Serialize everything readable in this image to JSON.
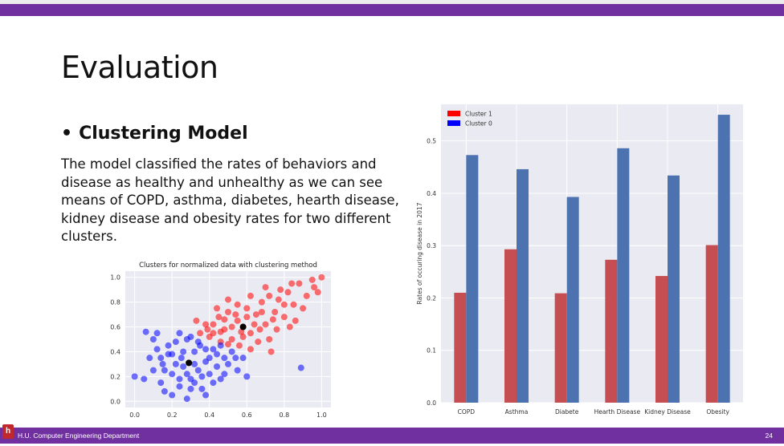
{
  "slide": {
    "title": "Evaluation",
    "bullet_marker": "•",
    "bullet": "Clustering Model",
    "body": "The model classified the rates of behaviors and disease as healthy and unhealthy as we can see means of COPD, asthma, diabetes, hearth disease, kidney disease and obesity rates for two different clusters.",
    "footer_text": "H.U. Computer Engineering Department",
    "page_number": "24",
    "logo_glyph": "h",
    "accent_color": "#7030a0"
  },
  "chart_data": [
    {
      "type": "scatter",
      "title": "Clusters for normalized data with clustering method",
      "xlim": [
        -0.05,
        1.05
      ],
      "ylim": [
        -0.05,
        1.05
      ],
      "xticks": [
        "0.0",
        "0.2",
        "0.4",
        "0.6",
        "0.8",
        "1.0"
      ],
      "yticks": [
        "0.0",
        "0.2",
        "0.4",
        "0.6",
        "0.8",
        "1.0"
      ],
      "grid": true,
      "series": [
        {
          "color": "#ff0000",
          "points": [
            [
              0.38,
              0.62
            ],
            [
              0.42,
              0.55
            ],
            [
              0.45,
              0.68
            ],
            [
              0.48,
              0.58
            ],
            [
              0.5,
              0.72
            ],
            [
              0.52,
              0.5
            ],
            [
              0.55,
              0.65
            ],
            [
              0.58,
              0.6
            ],
            [
              0.6,
              0.75
            ],
            [
              0.62,
              0.55
            ],
            [
              0.65,
              0.7
            ],
            [
              0.68,
              0.8
            ],
            [
              0.7,
              0.62
            ],
            [
              0.72,
              0.85
            ],
            [
              0.75,
              0.72
            ],
            [
              0.78,
              0.9
            ],
            [
              0.8,
              0.68
            ],
            [
              0.82,
              0.88
            ],
            [
              0.85,
              0.78
            ],
            [
              0.88,
              0.95
            ],
            [
              0.92,
              0.85
            ],
            [
              0.95,
              0.98
            ],
            [
              1.0,
              1.0
            ],
            [
              0.98,
              0.88
            ],
            [
              0.9,
              0.75
            ],
            [
              0.86,
              0.65
            ],
            [
              0.76,
              0.58
            ],
            [
              0.66,
              0.48
            ],
            [
              0.56,
              0.45
            ],
            [
              0.46,
              0.48
            ],
            [
              0.4,
              0.52
            ],
            [
              0.35,
              0.55
            ],
            [
              0.33,
              0.65
            ],
            [
              0.44,
              0.75
            ],
            [
              0.5,
              0.82
            ],
            [
              0.55,
              0.78
            ],
            [
              0.62,
              0.85
            ],
            [
              0.7,
              0.92
            ],
            [
              0.58,
              0.52
            ],
            [
              0.64,
              0.62
            ],
            [
              0.52,
              0.6
            ],
            [
              0.48,
              0.66
            ],
            [
              0.6,
              0.68
            ],
            [
              0.74,
              0.66
            ],
            [
              0.8,
              0.78
            ],
            [
              0.84,
              0.95
            ],
            [
              0.68,
              0.72
            ],
            [
              0.54,
              0.7
            ],
            [
              0.42,
              0.62
            ],
            [
              0.46,
              0.56
            ],
            [
              0.62,
              0.42
            ],
            [
              0.72,
              0.5
            ],
            [
              0.67,
              0.58
            ],
            [
              0.57,
              0.56
            ],
            [
              0.39,
              0.58
            ],
            [
              0.77,
              0.82
            ],
            [
              0.96,
              0.92
            ],
            [
              0.83,
              0.6
            ],
            [
              0.73,
              0.4
            ],
            [
              0.5,
              0.46
            ]
          ]
        },
        {
          "color": "#0000ff",
          "points": [
            [
              0.0,
              0.2
            ],
            [
              0.05,
              0.18
            ],
            [
              0.08,
              0.35
            ],
            [
              0.1,
              0.25
            ],
            [
              0.12,
              0.42
            ],
            [
              0.14,
              0.15
            ],
            [
              0.15,
              0.3
            ],
            [
              0.18,
              0.38
            ],
            [
              0.2,
              0.22
            ],
            [
              0.22,
              0.48
            ],
            [
              0.24,
              0.12
            ],
            [
              0.25,
              0.35
            ],
            [
              0.26,
              0.28
            ],
            [
              0.28,
              0.5
            ],
            [
              0.3,
              0.18
            ],
            [
              0.32,
              0.4
            ],
            [
              0.34,
              0.25
            ],
            [
              0.35,
              0.45
            ],
            [
              0.36,
              0.1
            ],
            [
              0.38,
              0.32
            ],
            [
              0.4,
              0.22
            ],
            [
              0.42,
              0.42
            ],
            [
              0.44,
              0.28
            ],
            [
              0.46,
              0.18
            ],
            [
              0.48,
              0.35
            ],
            [
              0.5,
              0.3
            ],
            [
              0.52,
              0.4
            ],
            [
              0.55,
              0.25
            ],
            [
              0.58,
              0.35
            ],
            [
              0.6,
              0.2
            ],
            [
              0.89,
              0.27
            ],
            [
              0.2,
              0.05
            ],
            [
              0.28,
              0.02
            ],
            [
              0.16,
              0.08
            ],
            [
              0.1,
              0.5
            ],
            [
              0.06,
              0.56
            ],
            [
              0.12,
              0.55
            ],
            [
              0.18,
              0.45
            ],
            [
              0.24,
              0.55
            ],
            [
              0.3,
              0.52
            ],
            [
              0.34,
              0.48
            ],
            [
              0.22,
              0.3
            ],
            [
              0.26,
              0.4
            ],
            [
              0.16,
              0.25
            ],
            [
              0.32,
              0.3
            ],
            [
              0.38,
              0.42
            ],
            [
              0.4,
              0.35
            ],
            [
              0.44,
              0.38
            ],
            [
              0.3,
              0.1
            ],
            [
              0.36,
              0.2
            ],
            [
              0.42,
              0.15
            ],
            [
              0.48,
              0.22
            ],
            [
              0.2,
              0.38
            ],
            [
              0.28,
              0.22
            ],
            [
              0.24,
              0.18
            ],
            [
              0.14,
              0.35
            ],
            [
              0.32,
              0.15
            ],
            [
              0.46,
              0.45
            ],
            [
              0.54,
              0.35
            ],
            [
              0.38,
              0.05
            ]
          ]
        },
        {
          "color": "#000000",
          "points": [
            [
              0.58,
              0.6
            ],
            [
              0.29,
              0.31
            ]
          ]
        }
      ]
    },
    {
      "type": "bar",
      "categories": [
        "COPD",
        "Asthma",
        "Diabete",
        "Hearth Disease",
        "Kidney Disease",
        "Obesity"
      ],
      "series": [
        {
          "name": "Cluster 1",
          "values": [
            0.21,
            0.293,
            0.209,
            0.273,
            0.242,
            0.301
          ],
          "color": "#c44e52"
        },
        {
          "name": "Cluster 0",
          "values": [
            0.473,
            0.446,
            0.393,
            0.486,
            0.434,
            0.55
          ],
          "color": "#4c72b0"
        }
      ],
      "ylabel": "Rates of occuring disease in 2017",
      "ylim": [
        0,
        0.57
      ],
      "yticks": [
        "0.0",
        "0.1",
        "0.2",
        "0.3",
        "0.4",
        "0.5"
      ],
      "legend": [
        {
          "label": "Cluster 1",
          "color": "#ff0000"
        },
        {
          "label": "Cluster 0",
          "color": "#0000ff"
        }
      ],
      "legend_position": "top-left",
      "grid": true
    }
  ]
}
